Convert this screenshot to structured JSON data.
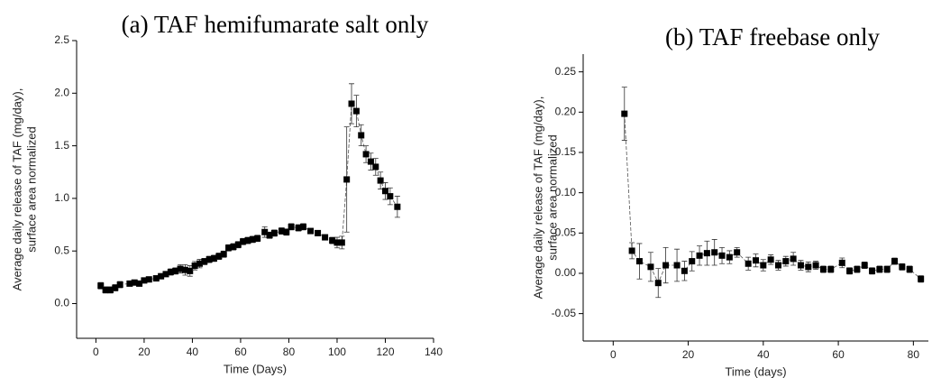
{
  "chart_data": [
    {
      "type": "scatter",
      "title": "(a) TAF hemifumarate salt only",
      "xlabel": "Time (Days)",
      "ylabel": [
        "Average daily release of TAF (mg/day),",
        "surface area normalized"
      ],
      "xlim": [
        -8,
        140
      ],
      "xticks": [
        0,
        20,
        40,
        60,
        80,
        100,
        120,
        140
      ],
      "ylim": [
        -0.33,
        2.5
      ],
      "yticks": [
        {
          "value": 0,
          "label": "0.0"
        },
        0.5,
        {
          "value": 1,
          "label": "1.0"
        },
        1.5,
        {
          "value": 2,
          "label": "2.0"
        },
        2.5
      ],
      "color": "#000000",
      "x": [
        2,
        4,
        6,
        8,
        10,
        14,
        16,
        18,
        20,
        22,
        25,
        27,
        29,
        31,
        33,
        35,
        37,
        39,
        41,
        43,
        45,
        47,
        49,
        51,
        53,
        55,
        57,
        59,
        61,
        63,
        65,
        67,
        70,
        72,
        74,
        77,
        79,
        81,
        84,
        86,
        89,
        92,
        95,
        98,
        100,
        102,
        104,
        106,
        108,
        110,
        112,
        114,
        116,
        118,
        120,
        122,
        125
      ],
      "values": [
        0.17,
        0.13,
        0.13,
        0.15,
        0.18,
        0.19,
        0.2,
        0.19,
        0.22,
        0.23,
        0.24,
        0.26,
        0.28,
        0.3,
        0.31,
        0.33,
        0.32,
        0.31,
        0.36,
        0.38,
        0.4,
        0.42,
        0.43,
        0.45,
        0.47,
        0.53,
        0.54,
        0.56,
        0.59,
        0.6,
        0.61,
        0.62,
        0.68,
        0.65,
        0.67,
        0.69,
        0.68,
        0.73,
        0.72,
        0.73,
        0.69,
        0.67,
        0.63,
        0.6,
        0.58,
        0.58,
        1.18,
        1.9,
        1.83,
        1.6,
        1.42,
        1.35,
        1.3,
        1.17,
        1.07,
        1.02,
        0.92
      ],
      "errors": [
        0.03,
        0.03,
        0.03,
        0.03,
        0.03,
        0.02,
        0.02,
        0.02,
        0.02,
        0.02,
        0.02,
        0.02,
        0.02,
        0.03,
        0.03,
        0.04,
        0.05,
        0.05,
        0.04,
        0.04,
        0.03,
        0.03,
        0.03,
        0.03,
        0.03,
        0.03,
        0.03,
        0.03,
        0.03,
        0.03,
        0.03,
        0.03,
        0.05,
        0.03,
        0.03,
        0.03,
        0.03,
        0.03,
        0.03,
        0.03,
        0.02,
        0.02,
        0.02,
        0.03,
        0.05,
        0.06,
        0.5,
        0.19,
        0.15,
        0.1,
        0.08,
        0.08,
        0.08,
        0.08,
        0.08,
        0.08,
        0.1
      ]
    },
    {
      "type": "scatter",
      "title": "(b) TAF freebase only",
      "xlabel": "Time (days)",
      "ylabel": [
        "Average daily release of TAF (mg/day),",
        "surface area normalized"
      ],
      "xlim": [
        -8,
        84
      ],
      "xticks": [
        0,
        20,
        40,
        60,
        80
      ],
      "ylim": [
        -0.084,
        0.272
      ],
      "yticks": [
        -0.05,
        {
          "value": 0,
          "label": "0.00"
        },
        0.05,
        {
          "value": 0.1,
          "label": "0.10"
        },
        0.15,
        {
          "value": 0.2,
          "label": "0.20"
        },
        0.25
      ],
      "color": "#000000",
      "x": [
        3,
        5,
        7,
        10,
        12,
        14,
        17,
        19,
        21,
        23,
        25,
        27,
        29,
        31,
        33,
        36,
        38,
        40,
        42,
        44,
        46,
        48,
        50,
        52,
        54,
        56,
        58,
        61,
        63,
        65,
        67,
        69,
        71,
        73,
        75,
        77,
        79,
        82
      ],
      "values": [
        0.198,
        0.028,
        0.015,
        0.008,
        -0.012,
        0.01,
        0.01,
        0.003,
        0.015,
        0.022,
        0.025,
        0.026,
        0.022,
        0.02,
        0.026,
        0.012,
        0.016,
        0.01,
        0.017,
        0.01,
        0.015,
        0.018,
        0.01,
        0.008,
        0.01,
        0.005,
        0.005,
        0.013,
        0.003,
        0.005,
        0.01,
        0.003,
        0.005,
        0.005,
        0.015,
        0.008,
        0.005,
        -0.007
      ],
      "errors": [
        0.033,
        0.01,
        0.022,
        0.018,
        0.018,
        0.022,
        0.02,
        0.012,
        0.012,
        0.012,
        0.015,
        0.016,
        0.01,
        0.008,
        0.006,
        0.008,
        0.008,
        0.007,
        0.006,
        0.006,
        0.006,
        0.008,
        0.006,
        0.006,
        0.005,
        0.004,
        0.004,
        0.006,
        0.004,
        0.004,
        0.004,
        0.004,
        0.004,
        0.004,
        0.004,
        0.004,
        0.004,
        0.004
      ]
    }
  ]
}
